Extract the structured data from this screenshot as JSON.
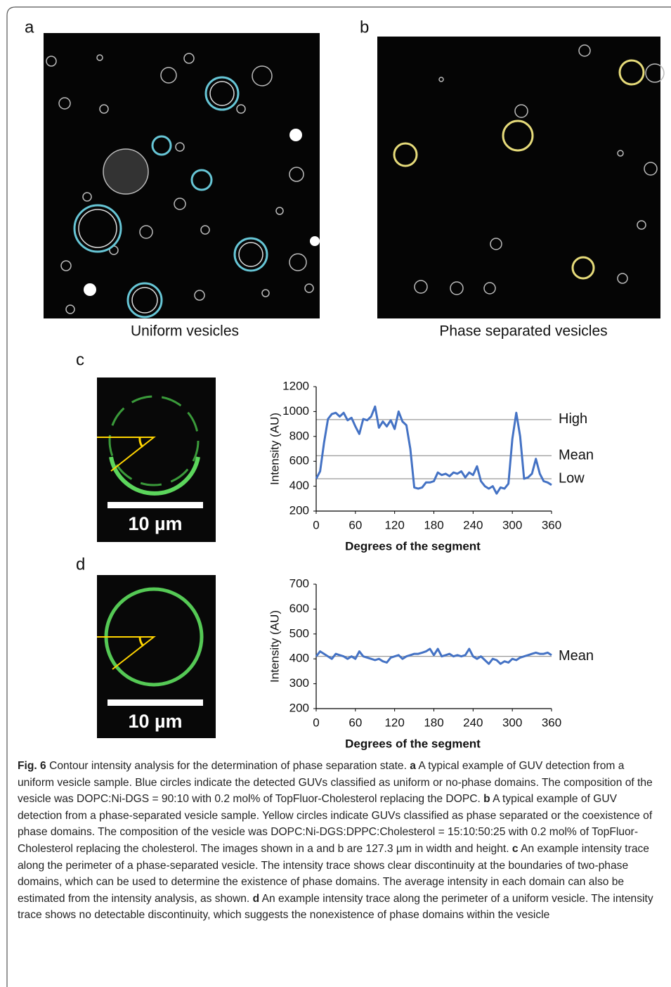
{
  "panels": {
    "a": {
      "label": "a",
      "caption": "Uniform vesicles"
    },
    "b": {
      "label": "b",
      "caption": "Phase separated vesicles"
    },
    "c": {
      "label": "c",
      "scale": "10 µm"
    },
    "d": {
      "label": "d",
      "scale": "10 µm"
    }
  },
  "chart_data": [
    {
      "type": "line",
      "y_label": "Intensity (AU)",
      "x_label": "Degrees  of the segment",
      "x": [
        0,
        6,
        12,
        18,
        24,
        30,
        36,
        42,
        48,
        54,
        60,
        66,
        72,
        78,
        84,
        90,
        96,
        102,
        108,
        114,
        120,
        126,
        132,
        138,
        144,
        150,
        156,
        162,
        168,
        174,
        180,
        186,
        192,
        198,
        204,
        210,
        216,
        222,
        228,
        234,
        240,
        246,
        252,
        258,
        264,
        270,
        276,
        282,
        288,
        294,
        300,
        306,
        312,
        318,
        324,
        330,
        336,
        342,
        348,
        354,
        360
      ],
      "series": [
        {
          "color": "#4472c4",
          "values": [
            460,
            520,
            750,
            940,
            980,
            990,
            960,
            990,
            930,
            950,
            880,
            820,
            940,
            930,
            960,
            1040,
            870,
            920,
            880,
            930,
            860,
            1000,
            920,
            890,
            700,
            390,
            380,
            390,
            430,
            430,
            440,
            510,
            490,
            500,
            480,
            510,
            500,
            520,
            470,
            510,
            490,
            560,
            440,
            400,
            380,
            400,
            340,
            390,
            380,
            420,
            780,
            990,
            800,
            460,
            470,
            500,
            620,
            500,
            440,
            430,
            410
          ]
        }
      ],
      "reference_lines": [
        {
          "label": "High",
          "value": 935
        },
        {
          "label": "Mean",
          "value": 645
        },
        {
          "label": "Low",
          "value": 460
        }
      ],
      "xlim": [
        0,
        360
      ],
      "xticks": [
        0,
        60,
        120,
        180,
        240,
        300,
        360
      ],
      "ylim": [
        200,
        1200
      ],
      "yticks": [
        200,
        400,
        600,
        800,
        1000,
        1200
      ]
    },
    {
      "type": "line",
      "y_label": "Intensity (AU)",
      "x_label": "Degrees  of the segment",
      "x": [
        0,
        6,
        12,
        18,
        24,
        30,
        36,
        42,
        48,
        54,
        60,
        66,
        72,
        78,
        84,
        90,
        96,
        102,
        108,
        114,
        120,
        126,
        132,
        138,
        144,
        150,
        156,
        162,
        168,
        174,
        180,
        186,
        192,
        198,
        204,
        210,
        216,
        222,
        228,
        234,
        240,
        246,
        252,
        258,
        264,
        270,
        276,
        282,
        288,
        294,
        300,
        306,
        312,
        318,
        324,
        330,
        336,
        342,
        348,
        354,
        360
      ],
      "series": [
        {
          "color": "#4472c4",
          "values": [
            410,
            430,
            420,
            410,
            400,
            420,
            415,
            410,
            400,
            410,
            400,
            430,
            410,
            405,
            400,
            395,
            400,
            390,
            385,
            405,
            410,
            415,
            400,
            410,
            415,
            420,
            420,
            425,
            430,
            440,
            415,
            440,
            410,
            415,
            420,
            410,
            415,
            410,
            415,
            440,
            410,
            400,
            410,
            395,
            380,
            400,
            395,
            380,
            390,
            385,
            400,
            395,
            405,
            410,
            415,
            420,
            425,
            420,
            420,
            425,
            415
          ]
        }
      ],
      "reference_lines": [
        {
          "label": "Mean",
          "value": 410
        }
      ],
      "xlim": [
        0,
        360
      ],
      "xticks": [
        0,
        60,
        120,
        180,
        240,
        300,
        360
      ],
      "ylim": [
        200,
        700
      ],
      "yticks": [
        200,
        300,
        400,
        500,
        600,
        700
      ]
    }
  ],
  "caption": {
    "label": "Fig. 6",
    "title": "Contour intensity analysis for the determination of phase separation state.",
    "parts": [
      {
        "key": "a",
        "text": "A typical example of GUV detection from a uniform vesicle sample. Blue circles indicate the detected GUVs classified as uniform or no-phase domains. The composition of the vesicle was DOPC:Ni-DGS = 90:10 with 0.2 mol% of TopFluor-Cholesterol replacing the DOPC."
      },
      {
        "key": "b",
        "text": "A typical example of GUV detection from a phase-separated vesicle sample. Yellow circles indicate GUVs classified as phase separated or the coexistence of phase domains. The composition of the vesicle was DOPC:Ni-DGS:DPPC:Cholesterol = 15:10:50:25 with 0.2 mol% of TopFluor-Cholesterol replacing the cholesterol. The images shown in a and b are 127.3 µm in width and height."
      },
      {
        "key": "c",
        "text": "An example intensity trace along the perimeter of a phase-separated vesicle. The intensity trace shows clear discontinuity at the boundaries of two-phase domains, which can be used to determine the existence of phase domains. The average intensity in each domain can also be estimated from the intensity analysis, as shown."
      },
      {
        "key": "d",
        "text": "An example intensity trace along the perimeter of a uniform vesicle. The intensity trace shows no detectable discontinuity, which suggests the nonexistence of phase domains within the vesicle"
      }
    ]
  }
}
